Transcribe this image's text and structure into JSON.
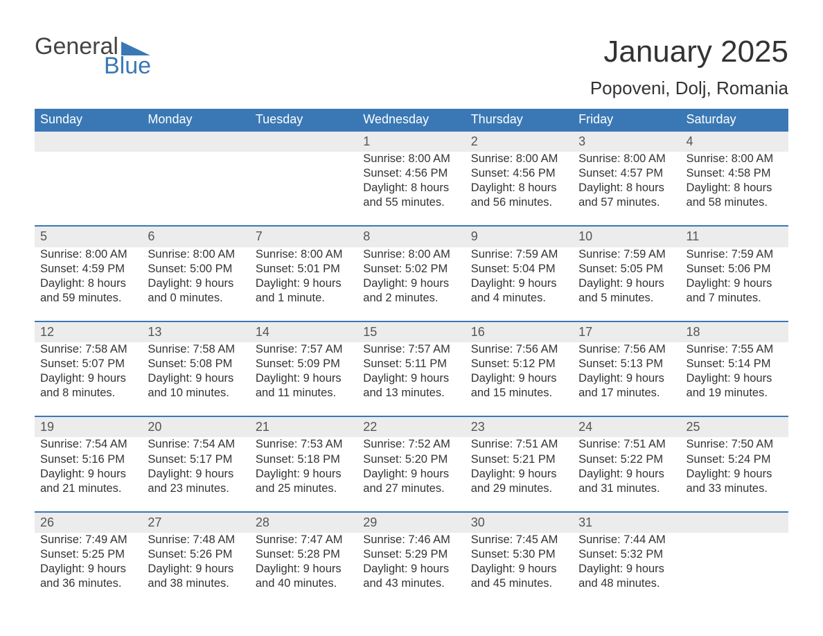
{
  "logo": {
    "word1": "General",
    "word2": "Blue"
  },
  "title": "January 2025",
  "location": "Popoveni, Dolj, Romania",
  "colors": {
    "header_bg": "#3a78b5",
    "header_text": "#ffffff",
    "daynum_bg": "#ececec",
    "daynum_border": "#3a78b5",
    "body_text": "#333333",
    "page_bg": "#ffffff"
  },
  "dayHeaders": [
    "Sunday",
    "Monday",
    "Tuesday",
    "Wednesday",
    "Thursday",
    "Friday",
    "Saturday"
  ],
  "weeks": [
    [
      null,
      null,
      null,
      {
        "day": "1",
        "sunrise": "Sunrise: 8:00 AM",
        "sunset": "Sunset: 4:56 PM",
        "dl1": "Daylight: 8 hours",
        "dl2": "and 55 minutes."
      },
      {
        "day": "2",
        "sunrise": "Sunrise: 8:00 AM",
        "sunset": "Sunset: 4:56 PM",
        "dl1": "Daylight: 8 hours",
        "dl2": "and 56 minutes."
      },
      {
        "day": "3",
        "sunrise": "Sunrise: 8:00 AM",
        "sunset": "Sunset: 4:57 PM",
        "dl1": "Daylight: 8 hours",
        "dl2": "and 57 minutes."
      },
      {
        "day": "4",
        "sunrise": "Sunrise: 8:00 AM",
        "sunset": "Sunset: 4:58 PM",
        "dl1": "Daylight: 8 hours",
        "dl2": "and 58 minutes."
      }
    ],
    [
      {
        "day": "5",
        "sunrise": "Sunrise: 8:00 AM",
        "sunset": "Sunset: 4:59 PM",
        "dl1": "Daylight: 8 hours",
        "dl2": "and 59 minutes."
      },
      {
        "day": "6",
        "sunrise": "Sunrise: 8:00 AM",
        "sunset": "Sunset: 5:00 PM",
        "dl1": "Daylight: 9 hours",
        "dl2": "and 0 minutes."
      },
      {
        "day": "7",
        "sunrise": "Sunrise: 8:00 AM",
        "sunset": "Sunset: 5:01 PM",
        "dl1": "Daylight: 9 hours",
        "dl2": "and 1 minute."
      },
      {
        "day": "8",
        "sunrise": "Sunrise: 8:00 AM",
        "sunset": "Sunset: 5:02 PM",
        "dl1": "Daylight: 9 hours",
        "dl2": "and 2 minutes."
      },
      {
        "day": "9",
        "sunrise": "Sunrise: 7:59 AM",
        "sunset": "Sunset: 5:04 PM",
        "dl1": "Daylight: 9 hours",
        "dl2": "and 4 minutes."
      },
      {
        "day": "10",
        "sunrise": "Sunrise: 7:59 AM",
        "sunset": "Sunset: 5:05 PM",
        "dl1": "Daylight: 9 hours",
        "dl2": "and 5 minutes."
      },
      {
        "day": "11",
        "sunrise": "Sunrise: 7:59 AM",
        "sunset": "Sunset: 5:06 PM",
        "dl1": "Daylight: 9 hours",
        "dl2": "and 7 minutes."
      }
    ],
    [
      {
        "day": "12",
        "sunrise": "Sunrise: 7:58 AM",
        "sunset": "Sunset: 5:07 PM",
        "dl1": "Daylight: 9 hours",
        "dl2": "and 8 minutes."
      },
      {
        "day": "13",
        "sunrise": "Sunrise: 7:58 AM",
        "sunset": "Sunset: 5:08 PM",
        "dl1": "Daylight: 9 hours",
        "dl2": "and 10 minutes."
      },
      {
        "day": "14",
        "sunrise": "Sunrise: 7:57 AM",
        "sunset": "Sunset: 5:09 PM",
        "dl1": "Daylight: 9 hours",
        "dl2": "and 11 minutes."
      },
      {
        "day": "15",
        "sunrise": "Sunrise: 7:57 AM",
        "sunset": "Sunset: 5:11 PM",
        "dl1": "Daylight: 9 hours",
        "dl2": "and 13 minutes."
      },
      {
        "day": "16",
        "sunrise": "Sunrise: 7:56 AM",
        "sunset": "Sunset: 5:12 PM",
        "dl1": "Daylight: 9 hours",
        "dl2": "and 15 minutes."
      },
      {
        "day": "17",
        "sunrise": "Sunrise: 7:56 AM",
        "sunset": "Sunset: 5:13 PM",
        "dl1": "Daylight: 9 hours",
        "dl2": "and 17 minutes."
      },
      {
        "day": "18",
        "sunrise": "Sunrise: 7:55 AM",
        "sunset": "Sunset: 5:14 PM",
        "dl1": "Daylight: 9 hours",
        "dl2": "and 19 minutes."
      }
    ],
    [
      {
        "day": "19",
        "sunrise": "Sunrise: 7:54 AM",
        "sunset": "Sunset: 5:16 PM",
        "dl1": "Daylight: 9 hours",
        "dl2": "and 21 minutes."
      },
      {
        "day": "20",
        "sunrise": "Sunrise: 7:54 AM",
        "sunset": "Sunset: 5:17 PM",
        "dl1": "Daylight: 9 hours",
        "dl2": "and 23 minutes."
      },
      {
        "day": "21",
        "sunrise": "Sunrise: 7:53 AM",
        "sunset": "Sunset: 5:18 PM",
        "dl1": "Daylight: 9 hours",
        "dl2": "and 25 minutes."
      },
      {
        "day": "22",
        "sunrise": "Sunrise: 7:52 AM",
        "sunset": "Sunset: 5:20 PM",
        "dl1": "Daylight: 9 hours",
        "dl2": "and 27 minutes."
      },
      {
        "day": "23",
        "sunrise": "Sunrise: 7:51 AM",
        "sunset": "Sunset: 5:21 PM",
        "dl1": "Daylight: 9 hours",
        "dl2": "and 29 minutes."
      },
      {
        "day": "24",
        "sunrise": "Sunrise: 7:51 AM",
        "sunset": "Sunset: 5:22 PM",
        "dl1": "Daylight: 9 hours",
        "dl2": "and 31 minutes."
      },
      {
        "day": "25",
        "sunrise": "Sunrise: 7:50 AM",
        "sunset": "Sunset: 5:24 PM",
        "dl1": "Daylight: 9 hours",
        "dl2": "and 33 minutes."
      }
    ],
    [
      {
        "day": "26",
        "sunrise": "Sunrise: 7:49 AM",
        "sunset": "Sunset: 5:25 PM",
        "dl1": "Daylight: 9 hours",
        "dl2": "and 36 minutes."
      },
      {
        "day": "27",
        "sunrise": "Sunrise: 7:48 AM",
        "sunset": "Sunset: 5:26 PM",
        "dl1": "Daylight: 9 hours",
        "dl2": "and 38 minutes."
      },
      {
        "day": "28",
        "sunrise": "Sunrise: 7:47 AM",
        "sunset": "Sunset: 5:28 PM",
        "dl1": "Daylight: 9 hours",
        "dl2": "and 40 minutes."
      },
      {
        "day": "29",
        "sunrise": "Sunrise: 7:46 AM",
        "sunset": "Sunset: 5:29 PM",
        "dl1": "Daylight: 9 hours",
        "dl2": "and 43 minutes."
      },
      {
        "day": "30",
        "sunrise": "Sunrise: 7:45 AM",
        "sunset": "Sunset: 5:30 PM",
        "dl1": "Daylight: 9 hours",
        "dl2": "and 45 minutes."
      },
      {
        "day": "31",
        "sunrise": "Sunrise: 7:44 AM",
        "sunset": "Sunset: 5:32 PM",
        "dl1": "Daylight: 9 hours",
        "dl2": "and 48 minutes."
      },
      null
    ]
  ]
}
